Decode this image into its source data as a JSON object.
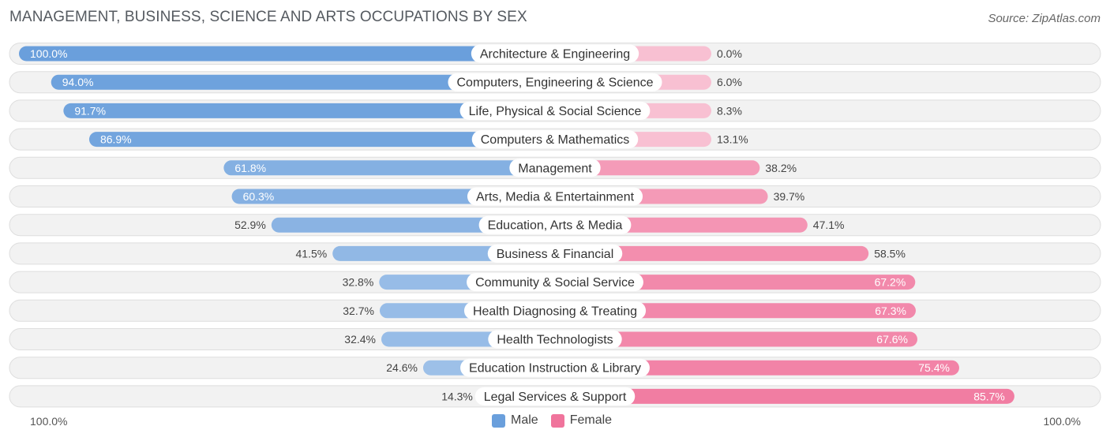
{
  "chart_data": {
    "type": "bar",
    "orientation": "horizontal-diverging",
    "title": "MANAGEMENT, BUSINESS, SCIENCE AND ARTS OCCUPATIONS BY SEX",
    "source": "Source: ZipAtlas.com",
    "categories": [
      "Architecture & Engineering",
      "Computers, Engineering & Science",
      "Life, Physical & Social Science",
      "Computers & Mathematics",
      "Management",
      "Arts, Media & Entertainment",
      "Education, Arts & Media",
      "Business & Financial",
      "Community & Social Service",
      "Health Diagnosing & Treating",
      "Health Technologists",
      "Education Instruction & Library",
      "Legal Services & Support"
    ],
    "series": [
      {
        "name": "Male",
        "color": "#6a9fdc",
        "values": [
          100.0,
          94.0,
          91.7,
          86.9,
          61.8,
          60.3,
          52.9,
          41.5,
          32.8,
          32.7,
          32.4,
          24.6,
          14.3
        ],
        "labels": [
          "100.0%",
          "94.0%",
          "91.7%",
          "86.9%",
          "61.8%",
          "60.3%",
          "52.9%",
          "41.5%",
          "32.8%",
          "32.7%",
          "32.4%",
          "24.6%",
          "14.3%"
        ]
      },
      {
        "name": "Female",
        "color": "#f0749c",
        "values": [
          0.0,
          6.0,
          8.3,
          13.1,
          38.2,
          39.7,
          47.1,
          58.5,
          67.2,
          67.3,
          67.6,
          75.4,
          85.7
        ],
        "labels": [
          "0.0%",
          "6.0%",
          "8.3%",
          "13.1%",
          "38.2%",
          "39.7%",
          "47.1%",
          "58.5%",
          "67.2%",
          "67.3%",
          "67.6%",
          "75.4%",
          "85.7%"
        ]
      }
    ],
    "axis_left_label": "100.0%",
    "axis_right_label": "100.0%",
    "xlim": [
      0,
      100
    ]
  }
}
